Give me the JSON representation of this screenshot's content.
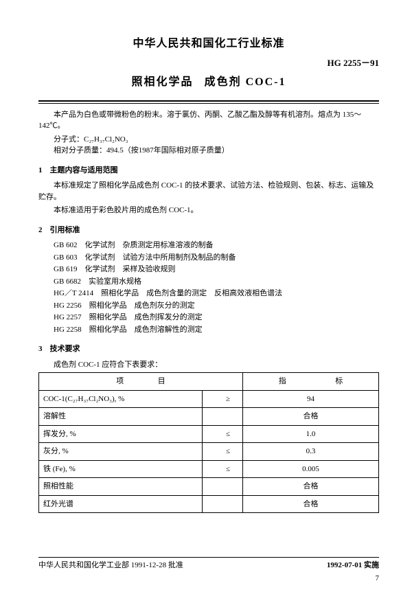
{
  "header": {
    "org_title": "中华人民共和国化工行业标准",
    "standard_code": "HG 2255－91",
    "doc_title_a": "照相化学品",
    "doc_title_b": "成色剂 COC-1"
  },
  "intro": {
    "p1": "本产品为白色或带微粉色的粉末。溶于氯仿、丙酮、乙酸乙酯及醇等有机溶剂。熔点为 135～142℃。",
    "formula_label": "分子式：",
    "formula": "C₂₇H₃₇Cl₂NO₃",
    "mass_label": "相对分子质量：",
    "mass_value": "494.5（按1987年国际相对原子质量）"
  },
  "sec1": {
    "title": "1　主题内容与适用范围",
    "p1": "本标准规定了照相化学品成色剂 COC-1 的技术要求、试验方法、检验规则、包装、标志、运输及贮存。",
    "p2": "本标准适用于彩色胶片用的成色剂 COC-1。"
  },
  "sec2": {
    "title": "2　引用标准",
    "refs": [
      "GB 602　化学试剂　杂质测定用标准溶液的制备",
      "GB 603　化学试剂　试验方法中所用制剂及制品的制备",
      "GB 619　化学试剂　采样及验收规则",
      "GB 6682　实验室用水规格",
      "HG／T 2414　照相化学品　成色剂含量的测定　反相高效液相色谱法",
      "HG 2256　照相化学品　成色剂灰分的测定",
      "HG 2257　照相化学品　成色剂挥发分的测定",
      "HG 2258　照相化学品　成色剂溶解性的测定"
    ]
  },
  "sec3": {
    "title": "3　技术要求",
    "lead": "成色剂 COC-1 应符合下表要求："
  },
  "table": {
    "head_item_a": "项",
    "head_item_b": "目",
    "head_val_a": "指",
    "head_val_b": "标",
    "rows": [
      {
        "item": "COC-1(C₂₇H₃₇Cl₂NO₃), %",
        "op": "≥",
        "val": "94"
      },
      {
        "item": "溶解性",
        "op": "",
        "val": "合格"
      },
      {
        "item": "挥发分, %",
        "op": "≤",
        "val": "1.0"
      },
      {
        "item": "灰分, %",
        "op": "≤",
        "val": "0.3"
      },
      {
        "item": "铁 (Fe), %",
        "op": "≤",
        "val": "0.005"
      },
      {
        "item": "照相性能",
        "op": "",
        "val": "合格"
      },
      {
        "item": "红外光谱",
        "op": "",
        "val": "合格"
      }
    ]
  },
  "footer": {
    "approve": "中华人民共和国化学工业部 1991-12-28 批准",
    "effective": "1992-07-01 实施",
    "pagenum": "7"
  }
}
